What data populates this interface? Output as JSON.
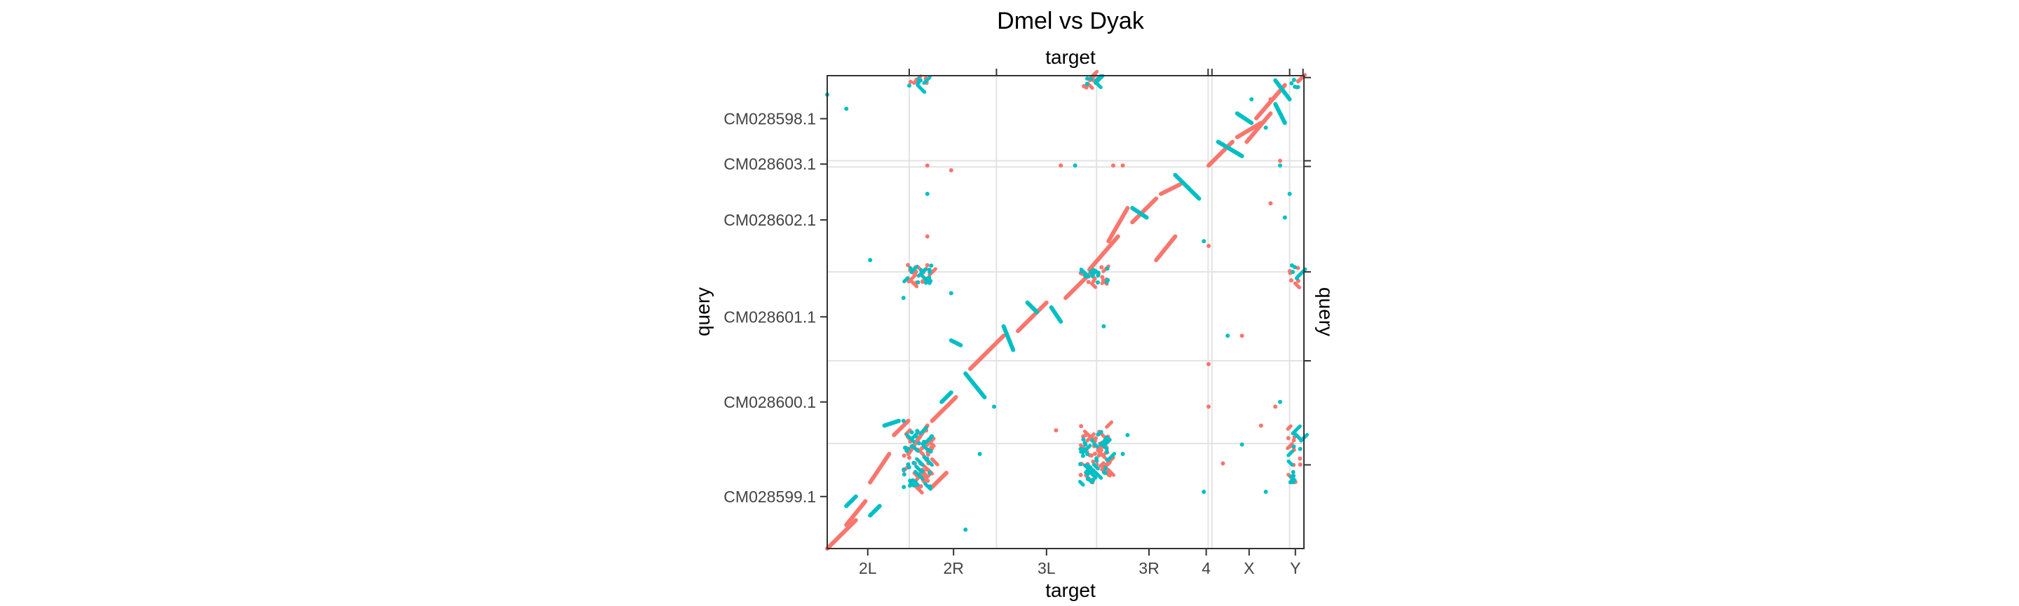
{
  "chart_data": {
    "type": "scatter",
    "title": "Dmel vs Dyak",
    "xlabel": "target",
    "x2label": "target",
    "ylabel": "query",
    "y2label": "query",
    "xlim": [
      0,
      1
    ],
    "ylim": [
      0,
      1
    ],
    "grid": true,
    "legend": "none",
    "x_ticks": [
      {
        "label": "2L",
        "pos": 0.085
      },
      {
        "label": "2R",
        "pos": 0.265
      },
      {
        "label": "3L",
        "pos": 0.46
      },
      {
        "label": "3R",
        "pos": 0.675
      },
      {
        "label": "4",
        "pos": 0.795
      },
      {
        "label": "X",
        "pos": 0.885
      },
      {
        "label": "Y",
        "pos": 0.982
      }
    ],
    "x_minor_ticks": [
      0.172,
      0.355,
      0.799,
      0.807,
      0.97,
      0.998
    ],
    "y_ticks": [
      {
        "label": "CM028598.1",
        "pos": 0.909
      },
      {
        "label": "CM028603.1",
        "pos": 0.813
      },
      {
        "label": "CM028602.1",
        "pos": 0.695
      },
      {
        "label": "CM028601.1",
        "pos": 0.49
      },
      {
        "label": "CM028600.1",
        "pos": 0.31
      },
      {
        "label": "CM028599.1",
        "pos": 0.11
      }
    ],
    "y_minor_ticks": [
      0.177,
      0.397,
      0.585,
      0.808,
      0.82,
      0.996
    ],
    "v_gridlines": [
      0.172,
      0.355,
      0.565,
      0.799,
      0.807,
      0.97
    ],
    "h_gridlines": [
      0.807,
      0.82,
      0.585,
      0.397,
      0.222
    ],
    "series": [
      {
        "color": "#F8766D",
        "segments": [
          [
            0.0,
            0.0,
            0.06,
            0.06
          ],
          [
            0.09,
            0.14,
            0.13,
            0.2
          ],
          [
            0.17,
            0.2,
            0.21,
            0.26
          ],
          [
            0.22,
            0.27,
            0.27,
            0.32
          ],
          [
            0.3,
            0.38,
            0.37,
            0.45
          ],
          [
            0.4,
            0.46,
            0.46,
            0.52
          ],
          [
            0.5,
            0.53,
            0.55,
            0.58
          ],
          [
            0.55,
            0.59,
            0.61,
            0.66
          ],
          [
            0.64,
            0.69,
            0.69,
            0.74
          ],
          [
            0.7,
            0.75,
            0.74,
            0.77
          ],
          [
            0.8,
            0.81,
            0.85,
            0.86
          ],
          [
            0.86,
            0.87,
            0.91,
            0.9
          ],
          [
            0.9,
            0.91,
            0.96,
            0.98
          ],
          [
            0.04,
            0.05,
            0.08,
            0.1
          ],
          [
            0.14,
            0.24,
            0.17,
            0.27
          ],
          [
            0.22,
            0.13,
            0.25,
            0.16
          ],
          [
            0.59,
            0.65,
            0.63,
            0.72
          ],
          [
            0.69,
            0.61,
            0.73,
            0.66
          ],
          [
            0.88,
            0.86,
            0.93,
            0.92
          ]
        ],
        "clusters": [
          [
            0.19,
            0.19,
            0.03,
            0.06,
            45
          ],
          [
            0.56,
            0.2,
            0.03,
            0.06,
            40
          ],
          [
            0.19,
            0.58,
            0.03,
            0.02,
            14
          ],
          [
            0.56,
            0.58,
            0.03,
            0.02,
            14
          ],
          [
            0.19,
            0.985,
            0.02,
            0.01,
            6
          ],
          [
            0.56,
            0.985,
            0.025,
            0.01,
            7
          ],
          [
            0.98,
            0.2,
            0.015,
            0.06,
            14
          ],
          [
            0.98,
            0.58,
            0.012,
            0.02,
            6
          ],
          [
            0.98,
            0.985,
            0.01,
            0.01,
            4
          ]
        ]
      },
      {
        "color": "#00BFC4",
        "segments": [
          [
            0.04,
            0.09,
            0.06,
            0.11
          ],
          [
            0.09,
            0.07,
            0.11,
            0.09
          ],
          [
            0.12,
            0.26,
            0.15,
            0.27
          ],
          [
            0.24,
            0.31,
            0.26,
            0.33
          ],
          [
            0.29,
            0.37,
            0.33,
            0.32
          ],
          [
            0.26,
            0.44,
            0.28,
            0.43
          ],
          [
            0.37,
            0.47,
            0.39,
            0.42
          ],
          [
            0.42,
            0.52,
            0.44,
            0.5
          ],
          [
            0.64,
            0.72,
            0.67,
            0.7
          ],
          [
            0.73,
            0.79,
            0.78,
            0.74
          ],
          [
            0.82,
            0.86,
            0.87,
            0.83
          ],
          [
            0.86,
            0.92,
            0.89,
            0.9
          ],
          [
            0.94,
            0.99,
            0.97,
            0.95
          ],
          [
            0.47,
            0.51,
            0.49,
            0.48
          ],
          [
            0.94,
            0.94,
            0.96,
            0.9
          ]
        ],
        "clusters": [
          [
            0.19,
            0.19,
            0.03,
            0.06,
            45
          ],
          [
            0.56,
            0.2,
            0.03,
            0.06,
            40
          ],
          [
            0.19,
            0.58,
            0.03,
            0.02,
            14
          ],
          [
            0.56,
            0.58,
            0.03,
            0.02,
            14
          ],
          [
            0.19,
            0.985,
            0.02,
            0.01,
            6
          ],
          [
            0.56,
            0.985,
            0.025,
            0.01,
            7
          ],
          [
            0.98,
            0.2,
            0.015,
            0.06,
            14
          ],
          [
            0.98,
            0.58,
            0.012,
            0.02,
            6
          ],
          [
            0.98,
            0.985,
            0.01,
            0.01,
            4
          ]
        ]
      }
    ],
    "scatter_points": [
      [
        0.04,
        0.93,
        "#00BFC4"
      ],
      [
        0.0,
        0.96,
        "#00BFC4"
      ],
      [
        0.09,
        0.61,
        "#00BFC4"
      ],
      [
        0.29,
        0.04,
        "#00BFC4"
      ],
      [
        0.32,
        0.2,
        "#00BFC4"
      ],
      [
        0.58,
        0.47,
        "#00BFC4"
      ],
      [
        0.62,
        0.2,
        "#00BFC4"
      ],
      [
        0.63,
        0.24,
        "#00BFC4"
      ],
      [
        0.79,
        0.12,
        "#00BFC4"
      ],
      [
        0.8,
        0.3,
        "#F8766D"
      ],
      [
        0.87,
        0.22,
        "#00BFC4"
      ],
      [
        0.83,
        0.18,
        "#F8766D"
      ],
      [
        0.92,
        0.12,
        "#00BFC4"
      ],
      [
        0.94,
        0.3,
        "#F8766D"
      ],
      [
        0.95,
        0.31,
        "#00BFC4"
      ],
      [
        0.91,
        0.26,
        "#F8766D"
      ],
      [
        0.8,
        0.39,
        "#F8766D"
      ],
      [
        0.84,
        0.45,
        "#00BFC4"
      ],
      [
        0.87,
        0.45,
        "#F8766D"
      ],
      [
        0.96,
        0.7,
        "#00BFC4"
      ],
      [
        0.93,
        0.73,
        "#F8766D"
      ],
      [
        0.97,
        0.75,
        "#00BFC4"
      ],
      [
        0.16,
        0.53,
        "#00BFC4"
      ],
      [
        0.26,
        0.54,
        "#00BFC4"
      ],
      [
        0.21,
        0.75,
        "#00BFC4"
      ],
      [
        0.26,
        0.8,
        "#F8766D"
      ],
      [
        0.21,
        0.81,
        "#F8766D"
      ],
      [
        0.49,
        0.81,
        "#F8766D"
      ],
      [
        0.52,
        0.81,
        "#00BFC4"
      ],
      [
        0.6,
        0.81,
        "#F8766D"
      ],
      [
        0.62,
        0.81,
        "#F8766D"
      ],
      [
        0.95,
        0.81,
        "#00BFC4"
      ],
      [
        0.48,
        0.25,
        "#F8766D"
      ],
      [
        0.79,
        0.65,
        "#00BFC4"
      ],
      [
        0.8,
        0.64,
        "#F8766D"
      ],
      [
        0.21,
        0.66,
        "#F8766D"
      ],
      [
        0.16,
        0.27,
        "#00BFC4"
      ],
      [
        0.35,
        0.3,
        "#00BFC4"
      ],
      [
        0.89,
        0.95,
        "#00BFC4"
      ],
      [
        0.93,
        0.95,
        "#F8766D"
      ],
      [
        0.92,
        0.89,
        "#00BFC4"
      ],
      [
        0.95,
        0.82,
        "#F8766D"
      ]
    ]
  }
}
